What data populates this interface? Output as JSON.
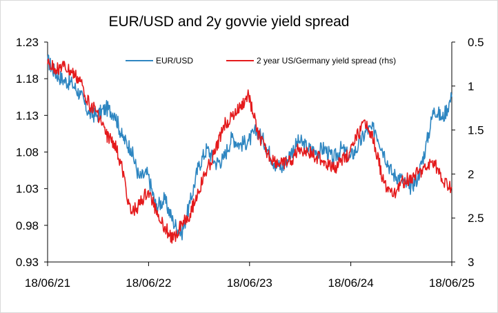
{
  "chart_data": {
    "type": "line",
    "title": "EUR/USD and 2y govvie yield spread",
    "x_ticks": [
      "18/06/21",
      "18/06/22",
      "18/06/23",
      "18/06/24",
      "18/06/25"
    ],
    "x_range": [
      "2021-06-18",
      "2025-06-18"
    ],
    "y_left": {
      "ticks": [
        "1.23",
        "1.18",
        "1.13",
        "1.08",
        "1.03",
        "0.98",
        "0.93"
      ],
      "range": [
        0.93,
        1.23
      ]
    },
    "y_right": {
      "ticks": [
        "0.5",
        "1",
        "1.5",
        "2",
        "2.5",
        "3"
      ],
      "range": [
        0.5,
        3
      ],
      "inverted": true
    },
    "legend_placement": "top",
    "grid": false,
    "series": [
      {
        "name": "EUR/USD",
        "axis": "left",
        "color": "#2e86c1",
        "points": [
          [
            "2021-06-18",
            1.205
          ],
          [
            "2021-07-15",
            1.188
          ],
          [
            "2021-08-15",
            1.178
          ],
          [
            "2021-09-15",
            1.173
          ],
          [
            "2021-10-15",
            1.158
          ],
          [
            "2021-11-15",
            1.132
          ],
          [
            "2021-12-15",
            1.13
          ],
          [
            "2022-01-15",
            1.14
          ],
          [
            "2022-02-15",
            1.133
          ],
          [
            "2022-03-15",
            1.1
          ],
          [
            "2022-04-15",
            1.085
          ],
          [
            "2022-05-15",
            1.045
          ],
          [
            "2022-06-15",
            1.05
          ],
          [
            "2022-07-15",
            1.005
          ],
          [
            "2022-08-15",
            1.015
          ],
          [
            "2022-09-15",
            0.985
          ],
          [
            "2022-10-15",
            0.968
          ],
          [
            "2022-11-15",
            1.01
          ],
          [
            "2022-12-15",
            1.06
          ],
          [
            "2023-01-15",
            1.085
          ],
          [
            "2023-02-15",
            1.065
          ],
          [
            "2023-03-15",
            1.07
          ],
          [
            "2023-04-15",
            1.1
          ],
          [
            "2023-05-15",
            1.09
          ],
          [
            "2023-06-15",
            1.095
          ],
          [
            "2023-07-15",
            1.11
          ],
          [
            "2023-08-15",
            1.09
          ],
          [
            "2023-09-15",
            1.065
          ],
          [
            "2023-10-15",
            1.058
          ],
          [
            "2023-11-15",
            1.08
          ],
          [
            "2023-12-15",
            1.095
          ],
          [
            "2024-01-15",
            1.085
          ],
          [
            "2024-02-15",
            1.08
          ],
          [
            "2024-03-15",
            1.085
          ],
          [
            "2024-04-15",
            1.07
          ],
          [
            "2024-05-15",
            1.085
          ],
          [
            "2024-06-15",
            1.072
          ],
          [
            "2024-07-15",
            1.088
          ],
          [
            "2024-08-15",
            1.11
          ],
          [
            "2024-09-15",
            1.11
          ],
          [
            "2024-10-15",
            1.08
          ],
          [
            "2024-11-15",
            1.05
          ],
          [
            "2024-12-15",
            1.045
          ],
          [
            "2025-01-15",
            1.03
          ],
          [
            "2025-02-15",
            1.045
          ],
          [
            "2025-03-15",
            1.085
          ],
          [
            "2025-04-15",
            1.14
          ],
          [
            "2025-05-15",
            1.125
          ],
          [
            "2025-06-18",
            1.155
          ]
        ]
      },
      {
        "name": "2 year US/Germany yield spread (rhs)",
        "axis": "right",
        "color": "#e41a1c",
        "points": [
          [
            "2021-06-18",
            0.75
          ],
          [
            "2021-07-15",
            0.8
          ],
          [
            "2021-08-15",
            0.78
          ],
          [
            "2021-09-15",
            0.85
          ],
          [
            "2021-10-15",
            0.95
          ],
          [
            "2021-11-15",
            1.2
          ],
          [
            "2021-12-15",
            1.3
          ],
          [
            "2022-01-15",
            1.55
          ],
          [
            "2022-02-15",
            1.65
          ],
          [
            "2022-03-15",
            1.95
          ],
          [
            "2022-04-15",
            2.45
          ],
          [
            "2022-05-15",
            2.35
          ],
          [
            "2022-06-15",
            2.2
          ],
          [
            "2022-07-15",
            2.4
          ],
          [
            "2022-08-15",
            2.6
          ],
          [
            "2022-09-15",
            2.75
          ],
          [
            "2022-10-15",
            2.55
          ],
          [
            "2022-11-15",
            2.45
          ],
          [
            "2022-12-15",
            2.2
          ],
          [
            "2023-01-15",
            1.95
          ],
          [
            "2023-02-15",
            1.75
          ],
          [
            "2023-03-15",
            1.45
          ],
          [
            "2023-04-15",
            1.35
          ],
          [
            "2023-05-15",
            1.25
          ],
          [
            "2023-06-15",
            1.1
          ],
          [
            "2023-07-15",
            1.5
          ],
          [
            "2023-08-15",
            1.75
          ],
          [
            "2023-09-15",
            1.85
          ],
          [
            "2023-10-15",
            1.9
          ],
          [
            "2023-11-15",
            1.85
          ],
          [
            "2023-12-15",
            1.7
          ],
          [
            "2024-01-15",
            1.75
          ],
          [
            "2024-02-15",
            1.8
          ],
          [
            "2024-03-15",
            1.85
          ],
          [
            "2024-04-15",
            1.95
          ],
          [
            "2024-05-15",
            1.85
          ],
          [
            "2024-06-15",
            1.75
          ],
          [
            "2024-07-15",
            1.55
          ],
          [
            "2024-08-15",
            1.4
          ],
          [
            "2024-09-15",
            1.7
          ],
          [
            "2024-10-15",
            2.1
          ],
          [
            "2024-11-15",
            2.25
          ],
          [
            "2024-12-15",
            2.1
          ],
          [
            "2025-01-15",
            2.05
          ],
          [
            "2025-02-15",
            2.0
          ],
          [
            "2025-03-15",
            1.95
          ],
          [
            "2025-04-15",
            1.85
          ],
          [
            "2025-05-15",
            2.1
          ],
          [
            "2025-06-18",
            2.15
          ]
        ]
      }
    ]
  }
}
